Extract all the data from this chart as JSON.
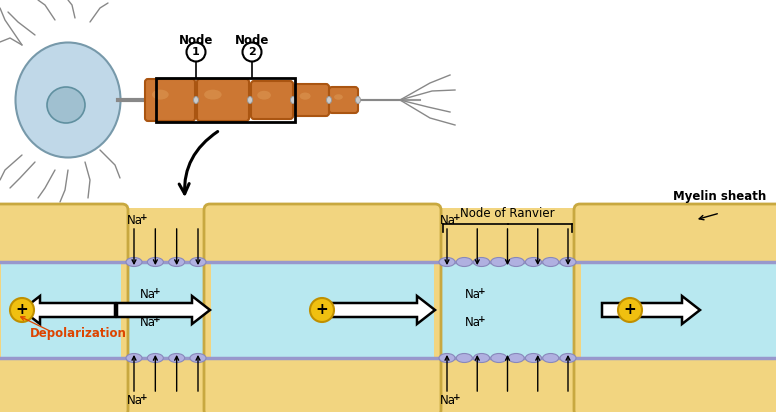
{
  "bg_color": "#ffffff",
  "myelin_yellow": "#F2D580",
  "myelin_border": "#C8A840",
  "axon_blue": "#B8E8F0",
  "axon_border": "#80B8CC",
  "channel_fill": "#B0B0E0",
  "channel_edge": "#8888BB",
  "membrane_line": "#9898CC",
  "arrow_white": "#ffffff",
  "arrow_border": "#000000",
  "plus_fill": "#F0C010",
  "plus_border": "#C09000",
  "depol_color": "#DD4400",
  "neuron_soma_fill": "#C0D8E8",
  "neuron_soma_edge": "#7799AA",
  "nucleus_fill": "#A0C0D0",
  "nucleus_edge": "#6090A0",
  "myelin_orange": "#CC7733",
  "myelin_orange_light": "#DD9955",
  "myelin_orange_edge": "#AA5511",
  "node_connector": "#BBBBBB",
  "dendrite_color": "#888888",
  "black": "#000000",
  "node_of_ranvier_label": "Node of Ranvier",
  "myelin_sheath_label": "Myelin sheath",
  "depolarization_label": "Depolarization",
  "na_label": "Na",
  "node1_label": "Node",
  "node2_label": "Node"
}
